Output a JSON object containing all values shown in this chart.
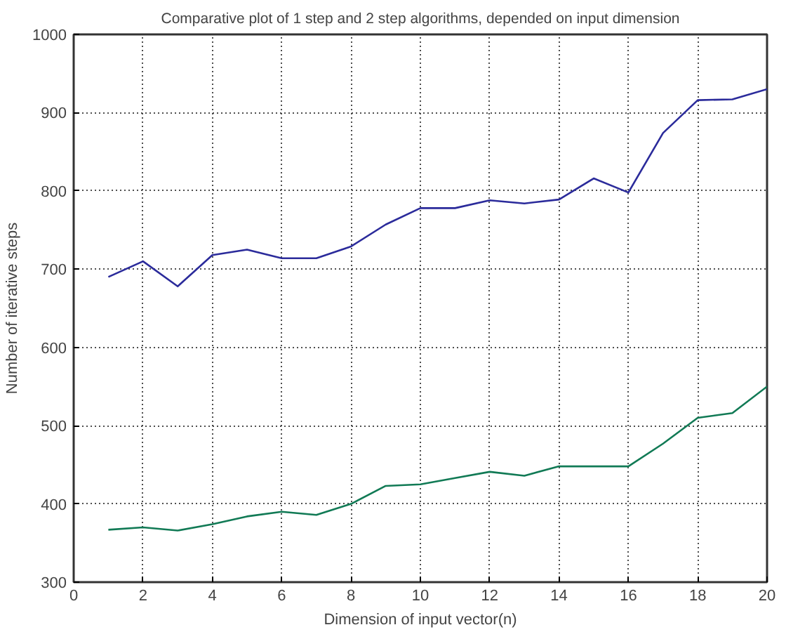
{
  "chart_data": {
    "type": "line",
    "title": "Comparative plot of 1 step and 2 step algorithms, depended on input dimension",
    "xlabel": "Dimension of input vector(n)",
    "ylabel": "Number of iterative steps",
    "x": [
      1,
      2,
      3,
      4,
      5,
      6,
      7,
      8,
      9,
      10,
      11,
      12,
      13,
      14,
      15,
      16,
      17,
      18,
      19,
      20
    ],
    "series": [
      {
        "color": "#2b2b9b",
        "values": [
          690,
          710,
          678,
          718,
          725,
          714,
          714,
          729,
          757,
          778,
          778,
          788,
          784,
          789,
          816,
          798,
          874,
          916,
          917,
          930
        ]
      },
      {
        "color": "#117a55",
        "values": [
          367,
          370,
          366,
          374,
          384,
          390,
          386,
          400,
          423,
          425,
          433,
          441,
          436,
          448,
          448,
          448,
          477,
          510,
          516,
          550
        ]
      }
    ],
    "xlim": [
      0,
      20
    ],
    "xticks": [
      0,
      2,
      4,
      6,
      8,
      10,
      12,
      14,
      16,
      18,
      20
    ],
    "ylim": [
      300,
      1000
    ],
    "yticks": [
      300,
      400,
      500,
      600,
      700,
      800,
      900,
      1000
    ],
    "grid": true,
    "line_style": "solid"
  }
}
